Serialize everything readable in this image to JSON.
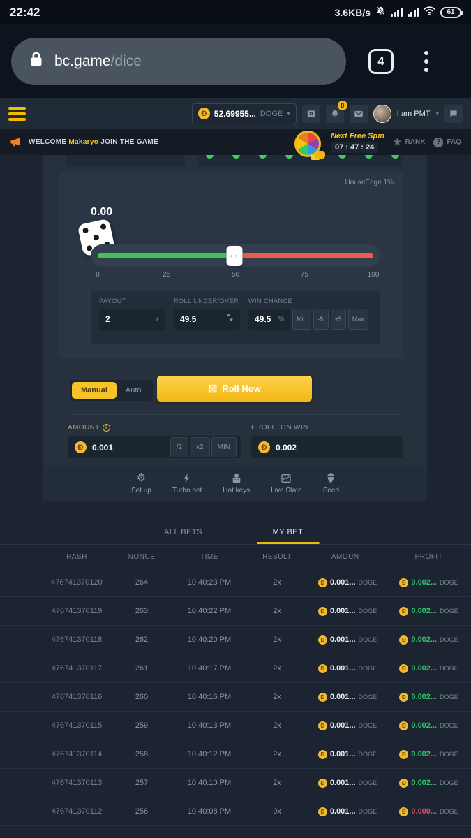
{
  "status_bar": {
    "time": "22:42",
    "network_speed": "3.6KB/s",
    "battery_level": "61"
  },
  "browser": {
    "url_domain": "bc.game",
    "url_path": "/dice",
    "tab_count": "4"
  },
  "site_header": {
    "balance": "52.69955...",
    "currency": "DOGE",
    "notification_count": "8",
    "username": "I am PMT"
  },
  "banner": {
    "welcome_prefix": "WELCOME",
    "player_name": "Makaryo",
    "welcome_suffix": "JOIN THE GAME",
    "free_spin_label": "Next Free Spin",
    "free_spin_timer": "07 : 47 : 24",
    "rank_label": "RANK",
    "faq_label": "FAQ"
  },
  "game": {
    "house_edge_label": "HouseEdge 1%",
    "last_result": "0.00",
    "slider_value_percent": 49.5,
    "slider_ticks": [
      "0",
      "25",
      "50",
      "75",
      "100"
    ],
    "recent_results": [
      "win",
      "win",
      "win",
      "win",
      "win",
      "win",
      "win",
      "win"
    ],
    "payout_label": "PAYOUT",
    "payout_value": "2",
    "payout_suffix": "x",
    "roll_label": "ROLL UNDER/OVER",
    "roll_value": "49.5",
    "win_chance_label": "WIN CHANCE",
    "win_chance_value": "49.5",
    "win_chance_suffix": "%",
    "win_chance_buttons": [
      "Min",
      "-5",
      "+5",
      "Max"
    ],
    "mode_manual": "Manual",
    "mode_auto": "Auto",
    "active_mode": "Manual",
    "roll_button_label": "Roll Now",
    "amount_label": "AMOUNT",
    "amount_value": "0.001",
    "amount_buttons": [
      "/2",
      "x2",
      "MIN"
    ],
    "profit_label": "PROFIT ON WIN",
    "profit_value": "0.002",
    "footer_actions": [
      "Set up",
      "Turbo bet",
      "Hot keys",
      "Live State",
      "Seed"
    ]
  },
  "bets": {
    "tab_all": "ALL BETS",
    "tab_my": "MY BET",
    "active_tab": "MY BET",
    "columns": [
      "HASH",
      "NONCE",
      "TIME",
      "RESULT",
      "AMOUNT",
      "PROFIT"
    ],
    "rows": [
      {
        "hash": "476741370120",
        "nonce": "264",
        "time": "10:40:23 PM",
        "result": "2x",
        "amount": "0.001...",
        "amount_unit": "DOGE",
        "profit": "0.002...",
        "profit_unit": "DOGE",
        "win": true
      },
      {
        "hash": "476741370119",
        "nonce": "263",
        "time": "10:40:22 PM",
        "result": "2x",
        "amount": "0.001...",
        "amount_unit": "DOGE",
        "profit": "0.002...",
        "profit_unit": "DOGE",
        "win": true
      },
      {
        "hash": "476741370118",
        "nonce": "262",
        "time": "10:40:20 PM",
        "result": "2x",
        "amount": "0.001...",
        "amount_unit": "DOGE",
        "profit": "0.002...",
        "profit_unit": "DOGE",
        "win": true
      },
      {
        "hash": "476741370117",
        "nonce": "261",
        "time": "10:40:17 PM",
        "result": "2x",
        "amount": "0.001...",
        "amount_unit": "DOGE",
        "profit": "0.002...",
        "profit_unit": "DOGE",
        "win": true
      },
      {
        "hash": "476741370116",
        "nonce": "260",
        "time": "10:40:16 PM",
        "result": "2x",
        "amount": "0.001...",
        "amount_unit": "DOGE",
        "profit": "0.002...",
        "profit_unit": "DOGE",
        "win": true
      },
      {
        "hash": "476741370115",
        "nonce": "259",
        "time": "10:40:13 PM",
        "result": "2x",
        "amount": "0.001...",
        "amount_unit": "DOGE",
        "profit": "0.002...",
        "profit_unit": "DOGE",
        "win": true
      },
      {
        "hash": "476741370114",
        "nonce": "258",
        "time": "10:40:12 PM",
        "result": "2x",
        "amount": "0.001...",
        "amount_unit": "DOGE",
        "profit": "0.002...",
        "profit_unit": "DOGE",
        "win": true
      },
      {
        "hash": "476741370113",
        "nonce": "257",
        "time": "10:40:10 PM",
        "result": "2x",
        "amount": "0.001...",
        "amount_unit": "DOGE",
        "profit": "0.002...",
        "profit_unit": "DOGE",
        "win": true
      },
      {
        "hash": "476741370112",
        "nonce": "256",
        "time": "10:40:08 PM",
        "result": "0x",
        "amount": "0.001...",
        "amount_unit": "DOGE",
        "profit": "0.000...",
        "profit_unit": "DOGE",
        "win": false
      }
    ]
  },
  "icons": {
    "coin_symbol": "Đ",
    "dice_glyph": "⚄",
    "gear_glyph": "⚙",
    "handle_glyph": "‹ ›",
    "star_glyph": "★",
    "question_glyph": "?",
    "info_glyph": "i",
    "caret_glyph": "▾"
  },
  "colors": {
    "accent_yellow": "#f5c01d",
    "slider_green": "#43c452",
    "slider_red": "#ee5951",
    "profit_green": "#2fc26e",
    "loss_red": "#d0506a"
  }
}
